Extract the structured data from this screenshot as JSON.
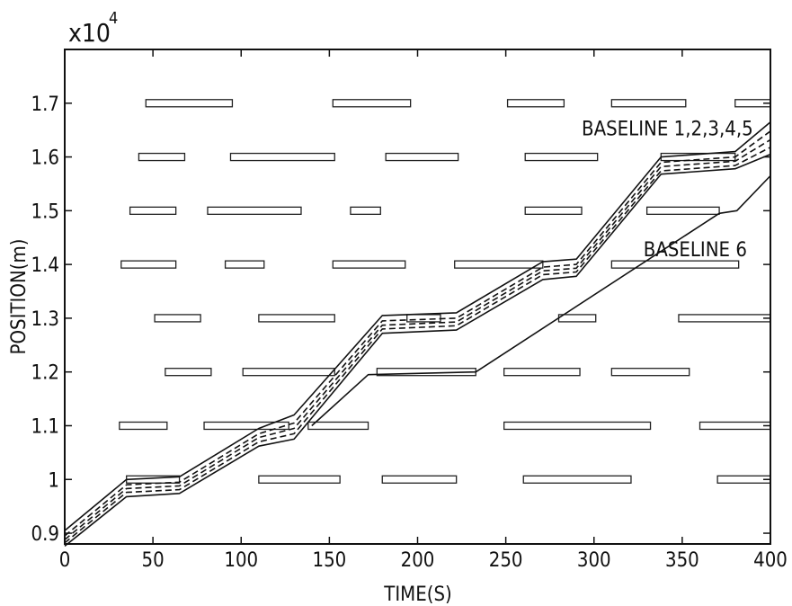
{
  "chart_data": {
    "type": "line",
    "title": "",
    "xlabel": "TIME(S)",
    "ylabel": "POSITION(m)",
    "y_multiplier_base": "x10",
    "y_multiplier_exp": "4",
    "xlim": [
      0,
      400
    ],
    "ylim": [
      0.88,
      1.8
    ],
    "xticks": [
      0,
      50,
      100,
      150,
      200,
      250,
      300,
      350,
      400
    ],
    "yticks": [
      0.9,
      1,
      1.1,
      1.2,
      1.3,
      1.4,
      1.5,
      1.6,
      1.7
    ],
    "grid": false,
    "annotations": [
      {
        "text": "BASELINE 1,2,3,4,5",
        "x": 293,
        "y": 1.64
      },
      {
        "text": "BASELINE 6",
        "x": 328,
        "y": 1.415
      }
    ],
    "signal_bars": [
      {
        "y": 1.0,
        "intervals": [
          [
            35,
            65
          ],
          [
            110,
            156
          ],
          [
            180,
            222
          ],
          [
            260,
            321
          ],
          [
            370,
            400
          ]
        ]
      },
      {
        "y": 1.1,
        "intervals": [
          [
            31,
            58
          ],
          [
            79,
            127
          ],
          [
            138,
            172
          ],
          [
            249,
            332
          ],
          [
            360,
            400
          ]
        ]
      },
      {
        "y": 1.2,
        "intervals": [
          [
            57,
            83
          ],
          [
            101,
            153
          ],
          [
            177,
            233
          ],
          [
            249,
            292
          ],
          [
            310,
            354
          ]
        ]
      },
      {
        "y": 1.3,
        "intervals": [
          [
            51,
            77
          ],
          [
            110,
            153
          ],
          [
            194,
            213
          ],
          [
            280,
            301
          ],
          [
            348,
            400
          ]
        ]
      },
      {
        "y": 1.4,
        "intervals": [
          [
            32,
            63
          ],
          [
            91,
            113
          ],
          [
            152,
            193
          ],
          [
            221,
            271
          ],
          [
            310,
            382
          ]
        ]
      },
      {
        "y": 1.5,
        "intervals": [
          [
            37,
            63
          ],
          [
            81,
            134
          ],
          [
            162,
            179
          ],
          [
            261,
            293
          ],
          [
            330,
            371
          ]
        ]
      },
      {
        "y": 1.6,
        "intervals": [
          [
            42,
            68
          ],
          [
            94,
            153
          ],
          [
            182,
            223
          ],
          [
            261,
            302
          ],
          [
            338,
            380
          ]
        ]
      },
      {
        "y": 1.7,
        "intervals": [
          [
            46,
            95
          ],
          [
            152,
            196
          ],
          [
            251,
            283
          ],
          [
            310,
            352
          ],
          [
            380,
            400
          ]
        ]
      }
    ],
    "series": [
      {
        "label_group": "BASELINE 1,2,3,4,5",
        "style": "solid",
        "x": [
          0,
          35,
          65,
          110,
          130,
          180,
          222,
          271,
          290,
          338,
          380,
          400
        ],
        "y": [
          0.905,
          1.0,
          1.005,
          1.095,
          1.12,
          1.305,
          1.31,
          1.405,
          1.41,
          1.6,
          1.61,
          1.665
        ]
      },
      {
        "label_group": "BASELINE 1,2,3,4,5",
        "style": "dashed",
        "x": [
          0,
          35,
          65,
          110,
          130,
          180,
          222,
          271,
          290,
          338,
          380,
          400
        ],
        "y": [
          0.895,
          0.99,
          0.995,
          1.085,
          1.105,
          1.295,
          1.3,
          1.395,
          1.4,
          1.59,
          1.6,
          1.648
        ]
      },
      {
        "label_group": "BASELINE 1,2,3,4,5",
        "style": "dashed",
        "x": [
          0,
          35,
          65,
          110,
          130,
          180,
          222,
          271,
          290,
          338,
          380,
          400
        ],
        "y": [
          0.888,
          0.983,
          0.988,
          1.078,
          1.095,
          1.287,
          1.293,
          1.388,
          1.393,
          1.582,
          1.592,
          1.632
        ]
      },
      {
        "label_group": "BASELINE 1,2,3,4,5",
        "style": "dashed",
        "x": [
          0,
          35,
          65,
          110,
          130,
          180,
          222,
          271,
          290,
          338,
          380,
          400
        ],
        "y": [
          0.882,
          0.976,
          0.981,
          1.07,
          1.085,
          1.28,
          1.286,
          1.381,
          1.386,
          1.574,
          1.584,
          1.618
        ]
      },
      {
        "label_group": "BASELINE 1,2,3,4,5",
        "style": "solid",
        "x": [
          0,
          35,
          65,
          110,
          130,
          180,
          222,
          271,
          290,
          338,
          380,
          400
        ],
        "y": [
          0.876,
          0.968,
          0.974,
          1.062,
          1.075,
          1.272,
          1.278,
          1.372,
          1.378,
          1.568,
          1.578,
          1.605
        ]
      },
      {
        "label_group": "BASELINE 6",
        "style": "solid",
        "x": [
          140,
          172,
          233,
          371,
          381,
          400
        ],
        "y": [
          1.1,
          1.195,
          1.2,
          1.495,
          1.5,
          1.565
        ]
      }
    ]
  }
}
